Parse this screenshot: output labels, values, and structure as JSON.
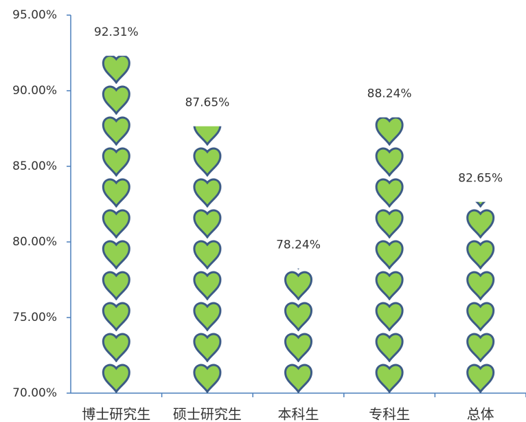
{
  "chart_data": {
    "type": "pictograph",
    "categories": [
      "博士研究生",
      "硕士研究生",
      "本科生",
      "专科生",
      "总体"
    ],
    "values": [
      92.31,
      87.65,
      78.24,
      88.24,
      82.65
    ],
    "value_labels": [
      "92.31%",
      "87.65%",
      "78.24%",
      "88.24%",
      "82.65%"
    ],
    "color": "#92d050",
    "ylim": [
      70,
      95
    ],
    "yticks": [
      {
        "value": 70,
        "label": "70.00%"
      },
      {
        "value": 75,
        "label": "75.00%"
      },
      {
        "value": 80,
        "label": "80.00%"
      },
      {
        "value": 85,
        "label": "85.00%"
      },
      {
        "value": 90,
        "label": "90.00%"
      },
      {
        "value": 95,
        "label": "95.00%"
      }
    ]
  }
}
